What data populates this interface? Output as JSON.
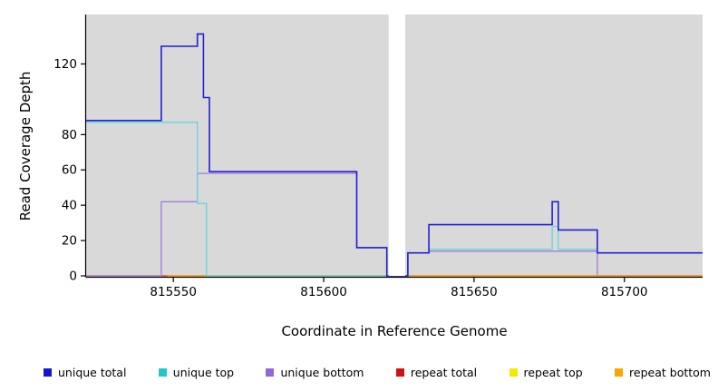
{
  "chart_data": {
    "type": "line",
    "title": "",
    "xlabel": "Coordinate in Reference Genome",
    "ylabel": "Read Coverage Depth",
    "xlim": [
      815521,
      815726
    ],
    "ylim": [
      0,
      148
    ],
    "x_ticks": [
      815550,
      815600,
      815650,
      815700
    ],
    "y_ticks": [
      0,
      20,
      40,
      60,
      80,
      120
    ],
    "panel_background": "#d9d9d9",
    "axis_color": "#000000",
    "gap_region": {
      "x_start": 815621.6,
      "x_end": 815627.1,
      "color": "#ffffff"
    },
    "step_mode": "after",
    "series": [
      {
        "name": "repeat top",
        "color": "#F5E800",
        "width": 1.2,
        "steps": [
          [
            815521,
            0
          ],
          [
            815726,
            0
          ]
        ]
      },
      {
        "name": "repeat total",
        "color": "#CC3333",
        "width": 1.2,
        "steps": [
          [
            815521,
            0
          ],
          [
            815726,
            0
          ]
        ]
      },
      {
        "name": "unique bottom",
        "color": "#A07CDC",
        "width": 1.3,
        "steps": [
          [
            815521,
            0
          ],
          [
            815546,
            42
          ],
          [
            815558,
            58
          ],
          [
            815611,
            16
          ],
          [
            815621,
            0
          ],
          [
            815628,
            13
          ],
          [
            815635,
            14
          ],
          [
            815691,
            0
          ],
          [
            815726,
            0
          ]
        ]
      },
      {
        "name": "repeat bottom",
        "color": "#FF9900",
        "width": 1.2,
        "steps": [
          [
            815548,
            0
          ],
          [
            815726,
            0
          ]
        ]
      },
      {
        "name": "unique top",
        "color": "#63D8DC",
        "width": 1.3,
        "steps": [
          [
            815521,
            87
          ],
          [
            815558,
            41
          ],
          [
            815561,
            0
          ],
          [
            815628,
            13
          ],
          [
            815635,
            15
          ],
          [
            815676,
            28
          ],
          [
            815678,
            15
          ],
          [
            815691,
            13
          ],
          [
            815726,
            13
          ]
        ]
      },
      {
        "name": "unique total",
        "color": "#2121CE",
        "width": 1.6,
        "steps": [
          [
            815521,
            88
          ],
          [
            815546,
            130
          ],
          [
            815558,
            137
          ],
          [
            815560,
            101
          ],
          [
            815562,
            59
          ],
          [
            815611,
            16
          ],
          [
            815621,
            0
          ],
          [
            815628,
            13
          ],
          [
            815635,
            29
          ],
          [
            815676,
            42
          ],
          [
            815678,
            26
          ],
          [
            815691,
            13
          ],
          [
            815726,
            13
          ]
        ]
      }
    ],
    "legend": [
      {
        "label": "unique total",
        "color": "#1414CC"
      },
      {
        "label": "unique top",
        "color": "#20C8C8"
      },
      {
        "label": "unique bottom",
        "color": "#9468D2"
      },
      {
        "label": "repeat total",
        "color": "#CC1414"
      },
      {
        "label": "repeat top",
        "color": "#F5E800"
      },
      {
        "label": "repeat bottom",
        "color": "#FFA500"
      }
    ]
  }
}
